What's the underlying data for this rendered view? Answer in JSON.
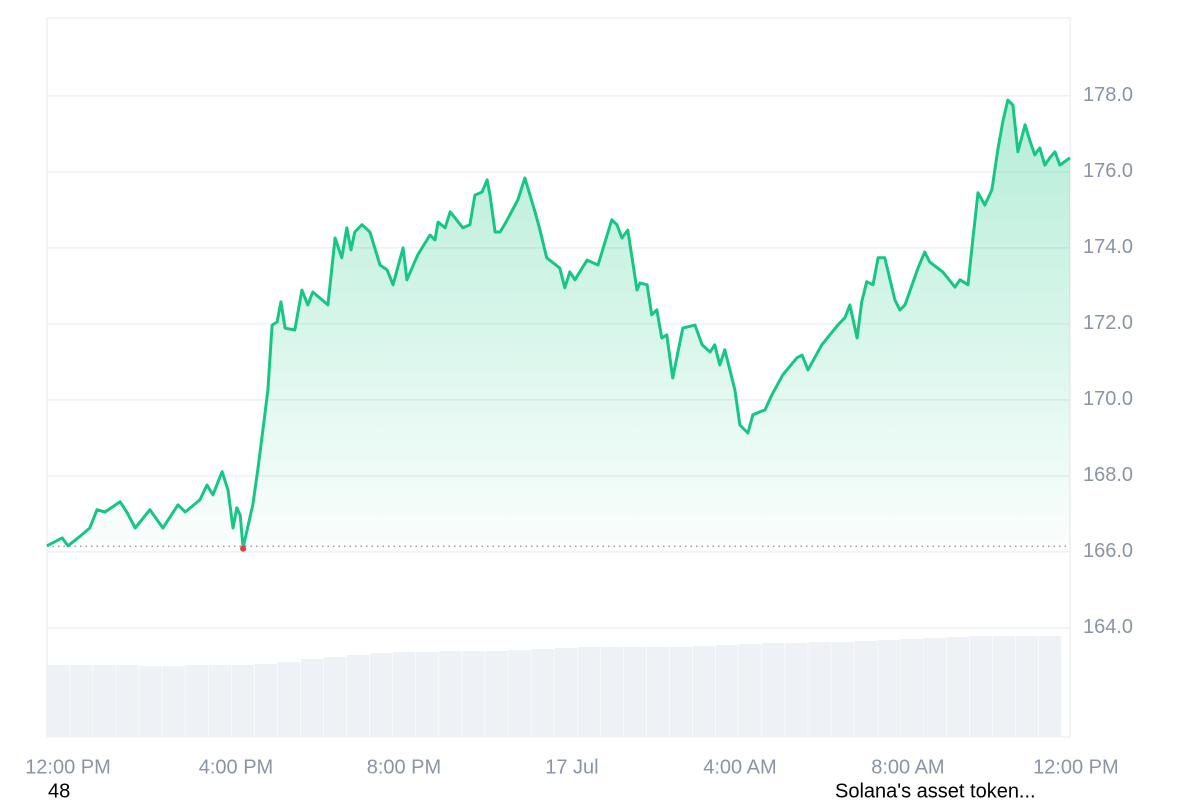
{
  "chart_data": {
    "type": "line",
    "color": "#16c784",
    "baseline": 166.15,
    "baseline_color": "#9aa0a6",
    "min_marker_color": "#ea3943",
    "grid": true,
    "x": [
      -0.5,
      -0.14,
      0,
      0.33,
      0.52,
      0.69,
      0.88,
      1.24,
      1.4,
      1.6,
      1.95,
      2.26,
      2.62,
      2.79,
      3.14,
      3.31,
      3.45,
      3.67,
      3.81,
      3.93,
      4.02,
      4.1,
      4.17,
      4.4,
      4.52,
      4.64,
      4.76,
      4.86,
      4.98,
      5.07,
      5.17,
      5.4,
      5.57,
      5.71,
      5.83,
      6.19,
      6.36,
      6.52,
      6.64,
      6.74,
      6.83,
      7,
      7.19,
      7.43,
      7.6,
      7.74,
      7.98,
      8.07,
      8.33,
      8.62,
      8.74,
      8.81,
      8.98,
      9.1,
      9.4,
      9.57,
      9.69,
      9.86,
      9.98,
      10.05,
      10.17,
      10.29,
      10.43,
      10.71,
      10.88,
      11.12,
      11.24,
      11.4,
      11.71,
      11.83,
      11.95,
      12.07,
      12.36,
      12.62,
      12.95,
      13.07,
      13.19,
      13.33,
      13.55,
      13.62,
      13.79,
      13.9,
      14.02,
      14.14,
      14.26,
      14.4,
      14.64,
      14.93,
      15.1,
      15.29,
      15.4,
      15.52,
      15.64,
      15.88,
      16,
      16.19,
      16.31,
      16.6,
      16.76,
      17.02,
      17.36,
      17.48,
      17.62,
      17.95,
      18.33,
      18.5,
      18.62,
      18.79,
      18.9,
      19.02,
      19.17,
      19.29,
      19.45,
      19.69,
      19.81,
      19.93,
      20.24,
      20.4,
      20.52,
      20.83,
      21.12,
      21.24,
      21.43,
      21.52,
      21.67,
      21.83,
      22,
      22.14,
      22.26,
      22.38,
      22.5,
      22.62,
      22.79,
      22.9,
      23.02,
      23.14,
      23.26,
      23.38,
      23.5,
      23.62,
      23.86
    ],
    "values": [
      166.16,
      166.37,
      166.16,
      166.45,
      166.63,
      167.11,
      167.05,
      167.32,
      167.05,
      166.63,
      167.11,
      166.63,
      167.24,
      167.05,
      167.37,
      167.76,
      167.5,
      168.11,
      167.63,
      166.63,
      167.16,
      166.97,
      166.11,
      167.24,
      168.16,
      169.21,
      170.26,
      171.97,
      172.05,
      172.58,
      171.89,
      171.84,
      172.89,
      172.5,
      172.84,
      172.5,
      174.26,
      173.74,
      174.53,
      173.95,
      174.42,
      174.61,
      174.42,
      173.55,
      173.42,
      173.03,
      174,
      173.16,
      173.82,
      174.34,
      174.21,
      174.68,
      174.53,
      174.95,
      174.53,
      174.61,
      175.39,
      175.47,
      175.79,
      175.39,
      174.42,
      174.42,
      174.68,
      175.26,
      175.84,
      174.95,
      174.47,
      173.74,
      173.47,
      172.95,
      173.37,
      173.16,
      173.68,
      173.55,
      174.74,
      174.61,
      174.26,
      174.47,
      172.89,
      173.08,
      173.03,
      172.24,
      172.37,
      171.63,
      171.71,
      170.58,
      171.89,
      171.97,
      171.45,
      171.26,
      171.45,
      170.92,
      171.32,
      170.26,
      169.34,
      169.13,
      169.61,
      169.74,
      170.13,
      170.66,
      171.11,
      171.18,
      170.79,
      171.45,
      171.97,
      172.16,
      172.5,
      171.63,
      172.58,
      173.11,
      173.03,
      173.74,
      173.74,
      172.63,
      172.37,
      172.5,
      173.47,
      173.89,
      173.63,
      173.37,
      172.97,
      173.16,
      173.03,
      173.95,
      175.45,
      175.13,
      175.53,
      176.58,
      177.32,
      177.89,
      177.76,
      176.53,
      177.24,
      176.84,
      176.45,
      176.63,
      176.18,
      176.37,
      176.53,
      176.18,
      176.37
    ],
    "xlim": [
      -0.5,
      23.86
    ],
    "xticks": [
      {
        "value": 0,
        "label": "12:00 PM"
      },
      {
        "value": 4,
        "label": "4:00 PM"
      },
      {
        "value": 8,
        "label": "8:00 PM"
      },
      {
        "value": 12,
        "label": "17 Jul"
      },
      {
        "value": 16,
        "label": "4:00 AM"
      },
      {
        "value": 20,
        "label": "8:00 AM"
      },
      {
        "value": 24,
        "label": "12:00 PM"
      }
    ],
    "ylim": [
      161.13,
      180.05
    ],
    "yticks": [
      {
        "value": 164,
        "label": "164.0"
      },
      {
        "value": 166,
        "label": "166.0"
      },
      {
        "value": 168,
        "label": "168.0"
      },
      {
        "value": 170,
        "label": "170.0"
      },
      {
        "value": 172,
        "label": "172.0"
      },
      {
        "value": 174,
        "label": "174.0"
      },
      {
        "value": 176,
        "label": "176.0"
      },
      {
        "value": 178,
        "label": "178.0"
      }
    ],
    "volume": {
      "color": "#eef1f5",
      "values": [
        72,
        72,
        72,
        72,
        71,
        71,
        72,
        72,
        72,
        73,
        75,
        78,
        80,
        82,
        84,
        85,
        85,
        86,
        86,
        86,
        87,
        88,
        89,
        90,
        90,
        90,
        90,
        90,
        91,
        92,
        93,
        94,
        94,
        95,
        95,
        96,
        97,
        98,
        99,
        100,
        101,
        101,
        101,
        101
      ]
    },
    "annotations": [
      "48",
      "Solana's asset token..."
    ]
  }
}
